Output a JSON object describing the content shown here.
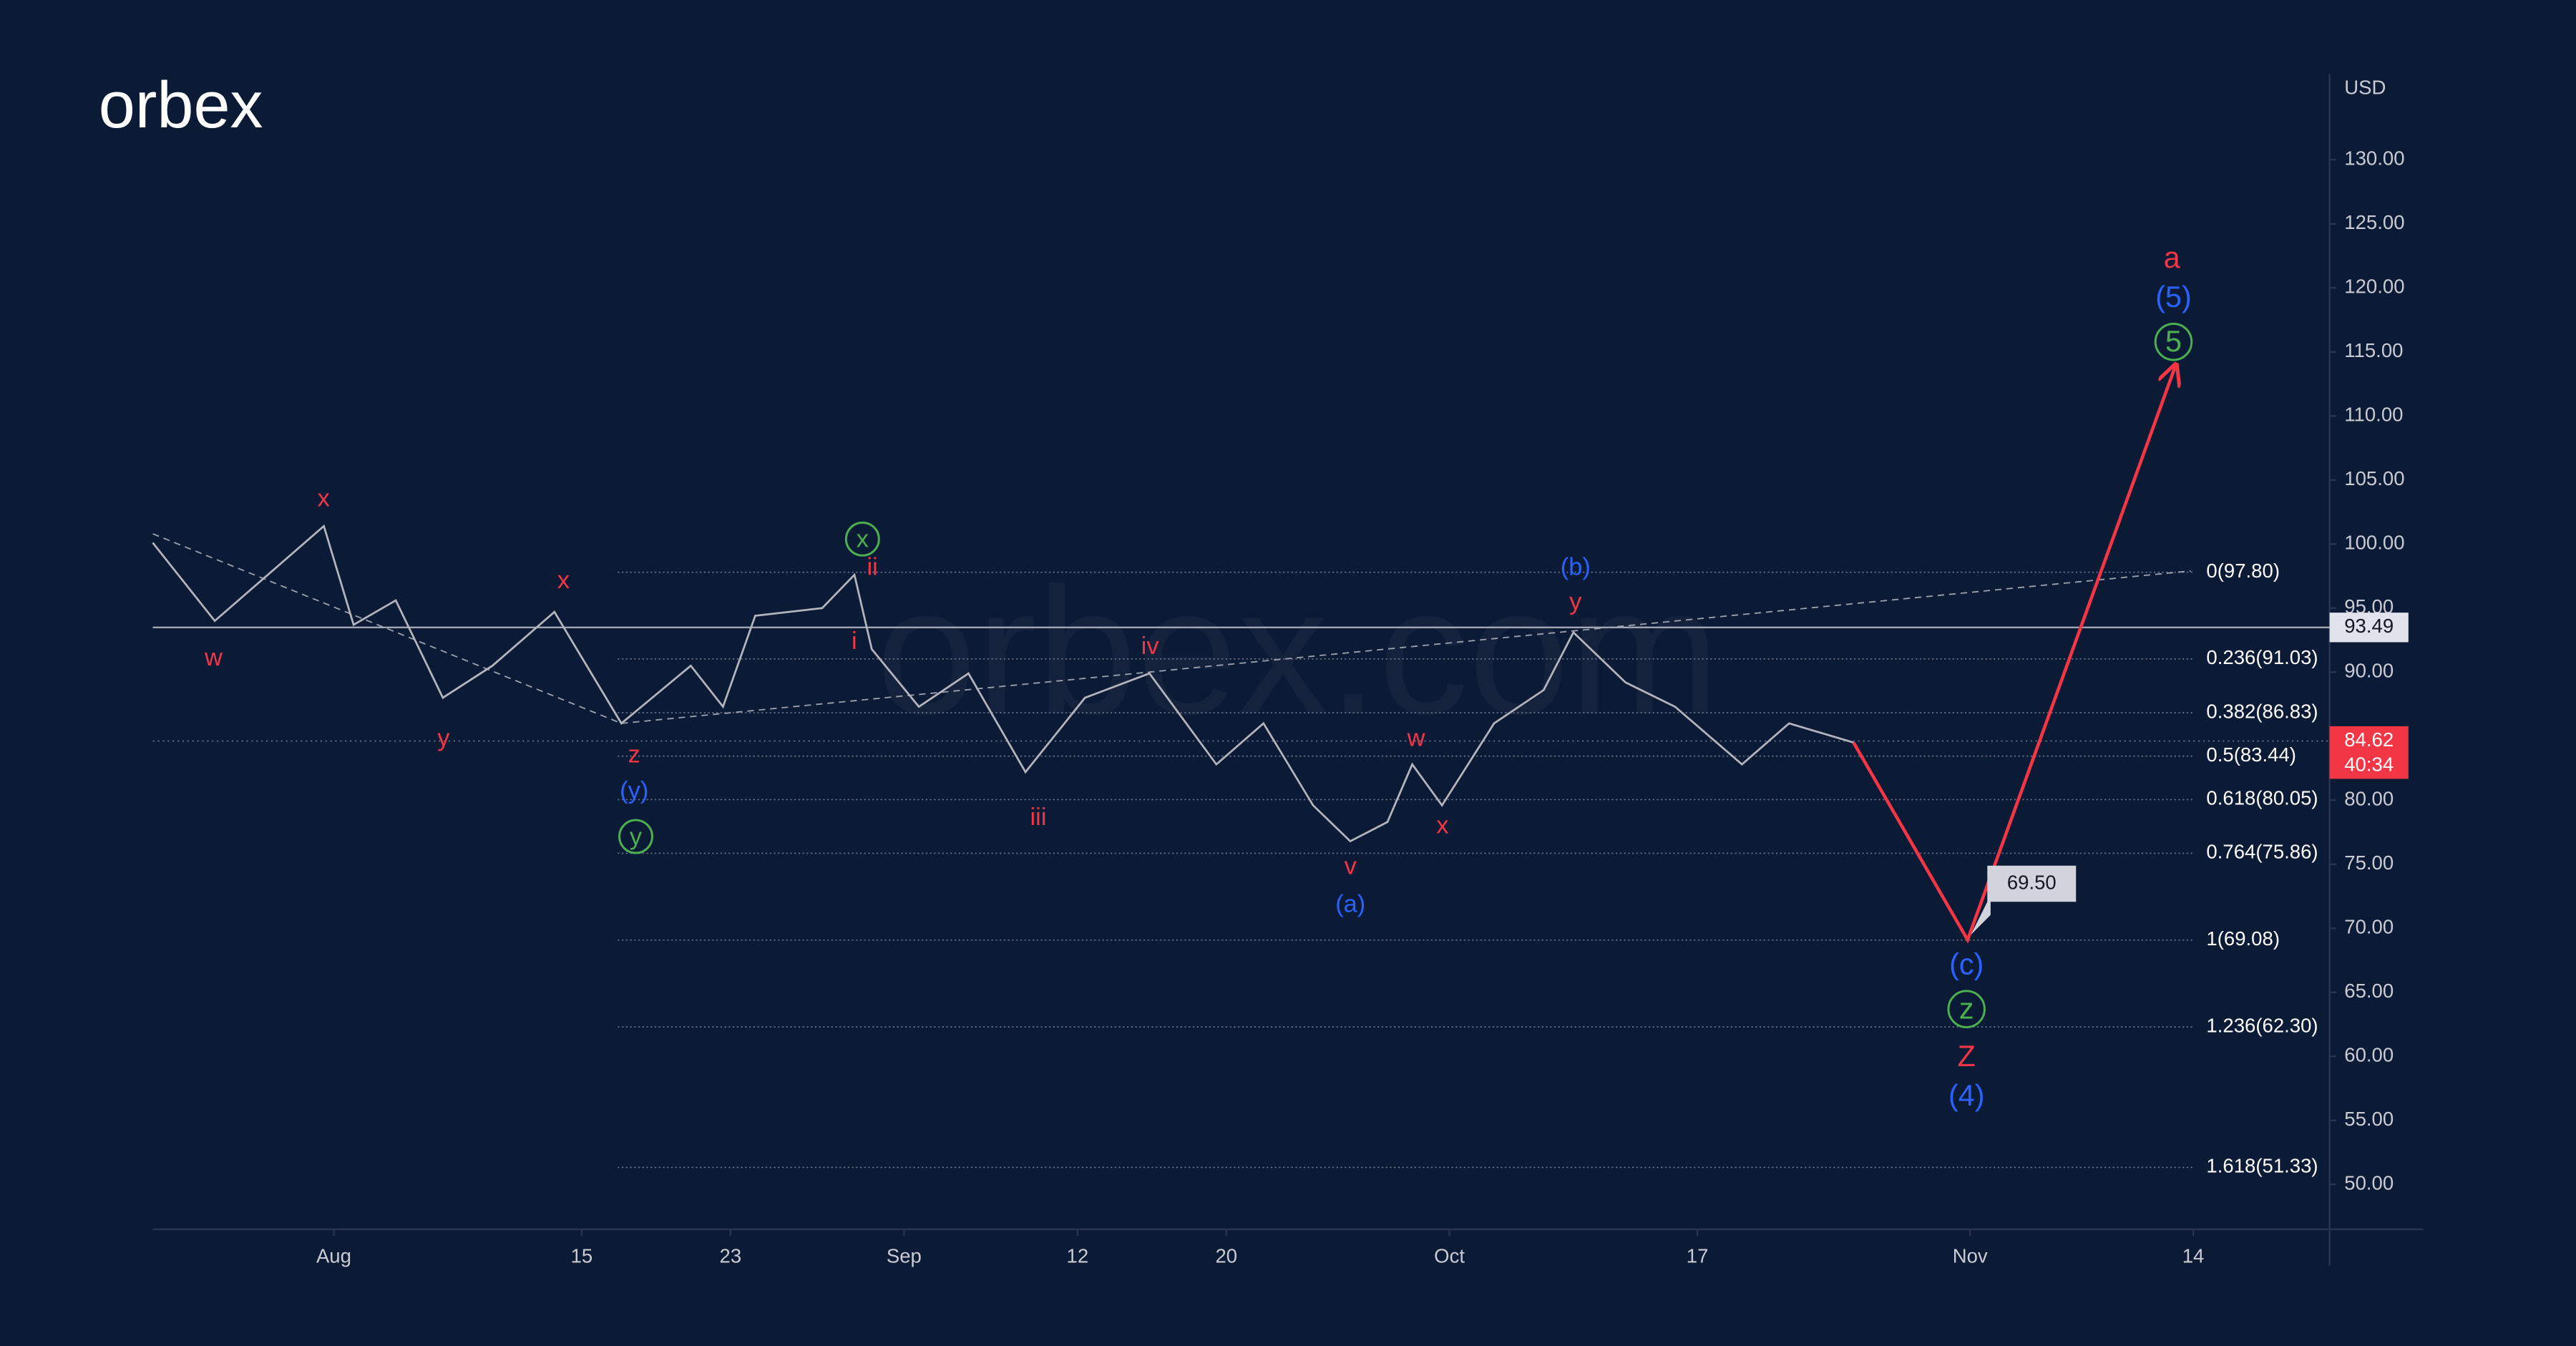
{
  "chart_data": {
    "type": "line",
    "logo": "orbex",
    "watermark": "orbex.com",
    "currency": "USD",
    "xlim": [
      -7.3,
      80.5
    ],
    "ylim": [
      46.5,
      136.7
    ],
    "grid": false,
    "xticks": [
      {
        "value": 0,
        "label": "Aug"
      },
      {
        "value": 10,
        "label": "15"
      },
      {
        "value": 16,
        "label": "23"
      },
      {
        "value": 23,
        "label": "Sep"
      },
      {
        "value": 30,
        "label": "12"
      },
      {
        "value": 36,
        "label": "20"
      },
      {
        "value": 45,
        "label": "Oct"
      },
      {
        "value": 55,
        "label": "17"
      },
      {
        "value": 66,
        "label": "Nov"
      },
      {
        "value": 75,
        "label": "14"
      }
    ],
    "yticks": [
      {
        "value": 50,
        "label": "50.00"
      },
      {
        "value": 55,
        "label": "55.00"
      },
      {
        "value": 60,
        "label": "60.00"
      },
      {
        "value": 65,
        "label": "65.00"
      },
      {
        "value": 70,
        "label": "70.00"
      },
      {
        "value": 75,
        "label": "75.00"
      },
      {
        "value": 80,
        "label": "80.00"
      },
      {
        "value": 85,
        "label": "85.00"
      },
      {
        "value": 90,
        "label": "90.00"
      },
      {
        "value": 95,
        "label": "95.00"
      },
      {
        "value": 100,
        "label": "100.00"
      },
      {
        "value": 105,
        "label": "105.00"
      },
      {
        "value": 110,
        "label": "110.00"
      },
      {
        "value": 115,
        "label": "115.00"
      },
      {
        "value": 120,
        "label": "120.00"
      },
      {
        "value": 125,
        "label": "125.00"
      },
      {
        "value": 130,
        "label": "130.00"
      }
    ],
    "series": [
      {
        "color": "#b2b5be",
        "x": [
          -7.3,
          -4.8,
          -0.4,
          0.8,
          2.5,
          4.4,
          6.4,
          8.9,
          11.6,
          14.4,
          15.7,
          17.0,
          19.7,
          21.0,
          21.7,
          23.6,
          25.6,
          27.9,
          30.3,
          32.9,
          35.6,
          37.5,
          39.5,
          41.0,
          42.5,
          43.5,
          44.7,
          46.8,
          48.8,
          50.0,
          52.1,
          54.1,
          56.8,
          58.7,
          61.3
        ],
        "values": [
          100.1,
          94.0,
          101.4,
          93.7,
          95.6,
          88.0,
          90.5,
          94.7,
          86.0,
          90.5,
          87.3,
          94.4,
          95.0,
          97.6,
          91.8,
          87.3,
          89.9,
          82.2,
          88.0,
          89.9,
          82.8,
          86.0,
          79.6,
          76.8,
          78.3,
          82.8,
          79.6,
          86.0,
          88.6,
          93.1,
          89.2,
          87.3,
          82.8,
          86.0,
          84.5
        ]
      }
    ],
    "forecast": {
      "color": "#f23645",
      "x": [
        61.3,
        65.9,
        74.3
      ],
      "values": [
        84.5,
        69.1,
        114.0
      ]
    },
    "target": 69.5,
    "target_label": "69.50",
    "trendlines": [
      {
        "x": [
          -7.3,
          11.6
        ],
        "values": [
          100.8,
          86.0
        ]
      },
      {
        "x": [
          11.6,
          74.9
        ],
        "values": [
          86.0,
          97.9
        ]
      }
    ],
    "fib_levels": [
      {
        "value": 97.8,
        "label": "0(97.80)"
      },
      {
        "value": 91.03,
        "label": "0.236(91.03)"
      },
      {
        "value": 86.83,
        "label": "0.382(86.83)"
      },
      {
        "value": 83.44,
        "label": "0.5(83.44)"
      },
      {
        "value": 80.05,
        "label": "0.618(80.05)"
      },
      {
        "value": 75.86,
        "label": "0.764(75.86)"
      },
      {
        "value": 69.08,
        "label": "1(69.08)"
      },
      {
        "value": 62.3,
        "label": "1.236(62.30)"
      },
      {
        "value": 51.33,
        "label": "1.618(51.33)"
      }
    ],
    "level": {
      "value": 93.49,
      "label": "93.49"
    },
    "last_price": {
      "value": 84.62,
      "label": "84.62"
    },
    "countdown": "40:34",
    "wave_labels": [
      {
        "text": "w",
        "color": "#f23645"
      },
      {
        "text": "x",
        "color": "#f23645"
      },
      {
        "text": "y",
        "color": "#f23645"
      },
      {
        "text": "x",
        "color": "#f23645"
      },
      {
        "text": "z",
        "color": "#f23645"
      },
      {
        "text": "(y)",
        "color": "#2962ff"
      },
      {
        "text": "y",
        "color": "#4caf50",
        "circled": true
      },
      {
        "text": "x",
        "color": "#4caf50",
        "circled": true
      },
      {
        "text": "ii",
        "color": "#f23645"
      },
      {
        "text": "i",
        "color": "#f23645"
      },
      {
        "text": "iii",
        "color": "#f23645"
      },
      {
        "text": "iv",
        "color": "#f23645"
      },
      {
        "text": "v",
        "color": "#f23645"
      },
      {
        "text": "(a)",
        "color": "#2962ff"
      },
      {
        "text": "w",
        "color": "#f23645"
      },
      {
        "text": "x",
        "color": "#f23645"
      },
      {
        "text": "(b)",
        "color": "#2962ff"
      },
      {
        "text": "y",
        "color": "#f23645"
      },
      {
        "text": "(c)",
        "color": "#2962ff"
      },
      {
        "text": "z",
        "color": "#4caf50",
        "circled": true
      },
      {
        "text": "Z",
        "color": "#f23645"
      },
      {
        "text": "(4)",
        "color": "#2962ff"
      },
      {
        "text": "a",
        "color": "#f23645"
      },
      {
        "text": "(5)",
        "color": "#2962ff"
      },
      {
        "text": "5",
        "color": "#4caf50",
        "circled": true
      }
    ]
  }
}
